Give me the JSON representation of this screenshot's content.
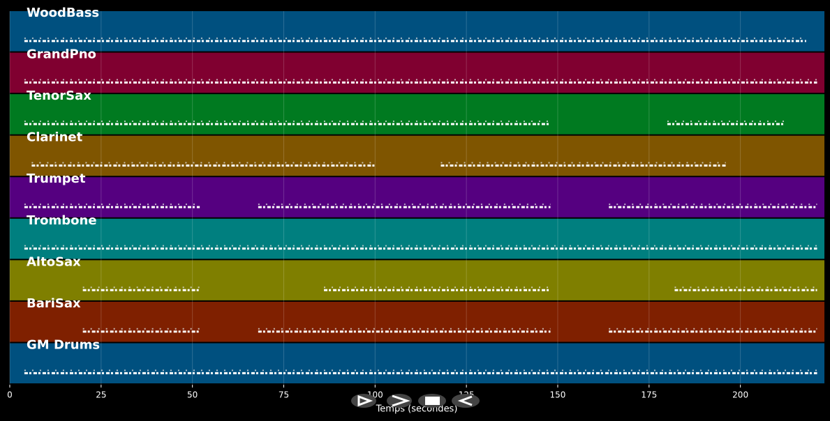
{
  "chart_data": {
    "type": "pianoroll",
    "x_label": "Temps (secondes)",
    "xlim": [
      0,
      223
    ],
    "xticks": [
      0,
      25,
      50,
      75,
      100,
      125,
      150,
      175,
      200
    ],
    "grid": true,
    "tracks": [
      {
        "name": "WoodBass",
        "color": "#00507f",
        "segments": [
          [
            4,
            218
          ]
        ]
      },
      {
        "name": "GrandPno",
        "color": "#800030",
        "segments": [
          [
            4,
            221
          ]
        ]
      },
      {
        "name": "TenorSax",
        "color": "#007a20",
        "segments": [
          [
            4,
            148
          ],
          [
            180,
            212
          ]
        ]
      },
      {
        "name": "Clarinet",
        "color": "#7f5500",
        "segments": [
          [
            6,
            100
          ],
          [
            118,
            196
          ]
        ]
      },
      {
        "name": "Trumpet",
        "color": "#550080",
        "segments": [
          [
            4,
            52
          ],
          [
            68,
            148
          ],
          [
            164,
            221
          ]
        ]
      },
      {
        "name": "Trombone",
        "color": "#007f7f",
        "segments": [
          [
            4,
            221
          ]
        ]
      },
      {
        "name": "AltoSax",
        "color": "#7f7f00",
        "segments": [
          [
            20,
            52
          ],
          [
            86,
            148
          ],
          [
            182,
            221
          ]
        ]
      },
      {
        "name": "BariSax",
        "color": "#7f2000",
        "segments": [
          [
            20,
            52
          ],
          [
            68,
            148
          ],
          [
            164,
            221
          ]
        ]
      },
      {
        "name": "GM Drums",
        "color": "#00507f",
        "segments": [
          [
            4,
            221
          ]
        ]
      }
    ]
  }
}
